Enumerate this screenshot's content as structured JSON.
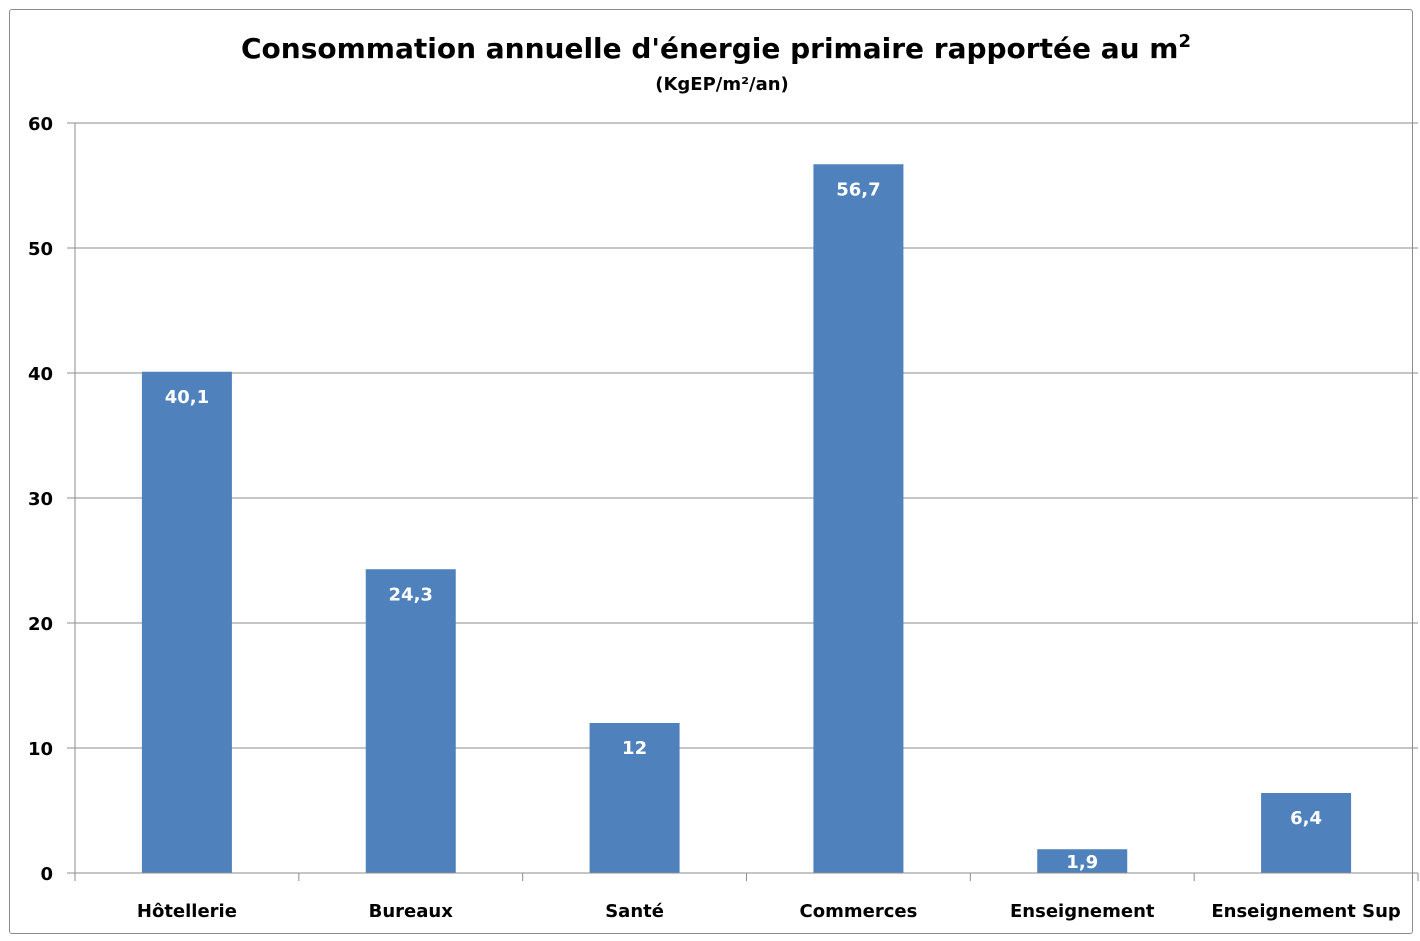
{
  "chart_data": {
    "type": "bar",
    "title": "Consommation annuelle d'énergie primaire rapportée au m",
    "title_superscript": "2",
    "subtitle": "(KgEP/m²/an)",
    "xlabel": "",
    "ylabel": "",
    "categories": [
      "Hôtellerie",
      "Bureaux",
      "Santé",
      "Commerces",
      "Enseignement",
      "Enseignement Sup"
    ],
    "values": [
      40.1,
      24.3,
      12,
      56.7,
      1.9,
      6.4
    ],
    "data_labels": [
      "40,1",
      "24,3",
      "12",
      "56,7",
      "1,9",
      "6,4"
    ],
    "ylim": [
      0,
      60
    ],
    "yticks": [
      0,
      10,
      20,
      30,
      40,
      50,
      60
    ],
    "ytick_labels": [
      "0",
      "10",
      "20",
      "30",
      "40",
      "50",
      "60"
    ],
    "grid": true,
    "legend": "none",
    "colors": {
      "bar": "#4f81bd",
      "gridline": "#8c8c8c",
      "data_label": "#ffffff",
      "text": "#000000"
    }
  }
}
